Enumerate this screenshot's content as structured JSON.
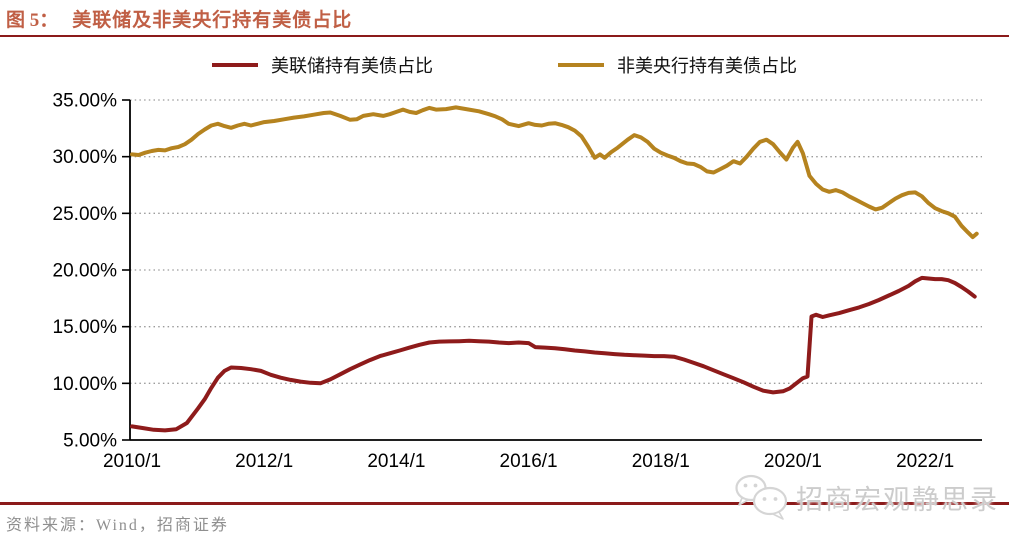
{
  "figure": {
    "number": "图 5：",
    "title": "美联储及非美央行持有美债占比"
  },
  "footer": {
    "source": "资料来源：Wind，招商证券"
  },
  "watermark": {
    "icon": "wechat-icon",
    "text": "招商宏观静思录"
  },
  "colors": {
    "title": "#c05f45",
    "rule": "#8b1a1a",
    "axis": "#000000",
    "grid": "#9b9b9b",
    "footer_text": "#8f8f8f",
    "watermark_text": "#cccccc",
    "fed_line": "#8e1b1b",
    "foreign_line": "#b5831f"
  },
  "chart_data": {
    "type": "line",
    "title": "美联储及非美央行持有美债占比",
    "xlabel": "",
    "ylabel": "",
    "grid": "horizontal-dotted",
    "legend_position": "top",
    "xlim": [
      2010,
      2022.86
    ],
    "ylim": [
      5,
      35
    ],
    "x_ticks": [
      {
        "value": 2010,
        "label": "2010/1"
      },
      {
        "value": 2012,
        "label": "2012/1"
      },
      {
        "value": 2014,
        "label": "2014/1"
      },
      {
        "value": 2016,
        "label": "2016/1"
      },
      {
        "value": 2018,
        "label": "2018/1"
      },
      {
        "value": 2020,
        "label": "2020/1"
      },
      {
        "value": 2022,
        "label": "2022/1"
      }
    ],
    "y_ticks": [
      {
        "value": 5,
        "label": "5.00%"
      },
      {
        "value": 10,
        "label": "10.00%"
      },
      {
        "value": 15,
        "label": "15.00%"
      },
      {
        "value": 20,
        "label": "20.00%"
      },
      {
        "value": 25,
        "label": "25.00%"
      },
      {
        "value": 30,
        "label": "30.00%"
      },
      {
        "value": 35,
        "label": "35.00%"
      }
    ],
    "series": [
      {
        "name": "美联储持有美债占比",
        "color": "#8e1b1b",
        "x": [
          2010.0,
          2010.17,
          2010.33,
          2010.5,
          2010.67,
          2010.83,
          2011.0,
          2011.1,
          2011.2,
          2011.3,
          2011.4,
          2011.5,
          2011.65,
          2011.8,
          2011.95,
          2012.1,
          2012.25,
          2012.4,
          2012.55,
          2012.7,
          2012.85,
          2013.0,
          2013.15,
          2013.3,
          2013.45,
          2013.6,
          2013.75,
          2013.9,
          2014.05,
          2014.2,
          2014.35,
          2014.5,
          2014.65,
          2014.8,
          2014.95,
          2015.1,
          2015.25,
          2015.4,
          2015.55,
          2015.7,
          2015.85,
          2016.0,
          2016.1,
          2016.25,
          2016.4,
          2016.55,
          2016.7,
          2016.85,
          2017.0,
          2017.15,
          2017.3,
          2017.45,
          2017.6,
          2017.75,
          2017.9,
          2018.05,
          2018.2,
          2018.35,
          2018.5,
          2018.65,
          2018.8,
          2018.95,
          2019.1,
          2019.25,
          2019.4,
          2019.55,
          2019.7,
          2019.85,
          2019.95,
          2020.05,
          2020.15,
          2020.22,
          2020.28,
          2020.35,
          2020.45,
          2020.55,
          2020.7,
          2020.85,
          2021.0,
          2021.15,
          2021.3,
          2021.45,
          2021.6,
          2021.75,
          2021.85,
          2021.95,
          2022.05,
          2022.15,
          2022.25,
          2022.35,
          2022.45,
          2022.55,
          2022.65,
          2022.75
        ],
        "y": [
          6.2,
          6.05,
          5.9,
          5.85,
          5.95,
          6.5,
          7.8,
          8.6,
          9.6,
          10.5,
          11.1,
          11.4,
          11.35,
          11.25,
          11.1,
          10.75,
          10.5,
          10.3,
          10.15,
          10.05,
          10.0,
          10.35,
          10.8,
          11.25,
          11.65,
          12.05,
          12.4,
          12.65,
          12.9,
          13.15,
          13.4,
          13.6,
          13.68,
          13.7,
          13.72,
          13.75,
          13.72,
          13.68,
          13.6,
          13.55,
          13.6,
          13.55,
          13.2,
          13.15,
          13.1,
          13.0,
          12.9,
          12.82,
          12.72,
          12.65,
          12.58,
          12.52,
          12.48,
          12.45,
          12.4,
          12.4,
          12.35,
          12.1,
          11.8,
          11.5,
          11.15,
          10.8,
          10.45,
          10.1,
          9.7,
          9.35,
          9.2,
          9.3,
          9.55,
          10.0,
          10.45,
          10.6,
          15.9,
          16.05,
          15.85,
          16.0,
          16.2,
          16.45,
          16.7,
          17.0,
          17.35,
          17.75,
          18.15,
          18.6,
          19.0,
          19.3,
          19.25,
          19.2,
          19.2,
          19.1,
          18.85,
          18.5,
          18.1,
          17.65
        ]
      },
      {
        "name": "非美央行持有美债占比",
        "color": "#b5831f",
        "x": [
          2010.0,
          2010.1,
          2010.2,
          2010.3,
          2010.4,
          2010.5,
          2010.6,
          2010.7,
          2010.8,
          2010.9,
          2011.0,
          2011.1,
          2011.2,
          2011.3,
          2011.4,
          2011.5,
          2011.6,
          2011.7,
          2011.8,
          2011.9,
          2012.0,
          2012.15,
          2012.3,
          2012.45,
          2012.6,
          2012.75,
          2012.9,
          2013.0,
          2013.15,
          2013.3,
          2013.4,
          2013.5,
          2013.65,
          2013.8,
          2013.9,
          2014.0,
          2014.1,
          2014.2,
          2014.3,
          2014.4,
          2014.5,
          2014.6,
          2014.75,
          2014.9,
          2015.0,
          2015.1,
          2015.25,
          2015.4,
          2015.5,
          2015.6,
          2015.7,
          2015.85,
          2016.0,
          2016.1,
          2016.2,
          2016.3,
          2016.4,
          2016.5,
          2016.6,
          2016.7,
          2016.8,
          2016.9,
          2017.0,
          2017.08,
          2017.15,
          2017.25,
          2017.35,
          2017.5,
          2017.6,
          2017.7,
          2017.8,
          2017.9,
          2018.0,
          2018.1,
          2018.2,
          2018.3,
          2018.4,
          2018.5,
          2018.6,
          2018.7,
          2018.8,
          2018.9,
          2019.0,
          2019.1,
          2019.2,
          2019.3,
          2019.4,
          2019.5,
          2019.6,
          2019.7,
          2019.8,
          2019.9,
          2020.0,
          2020.07,
          2020.15,
          2020.25,
          2020.35,
          2020.45,
          2020.55,
          2020.65,
          2020.75,
          2020.85,
          2020.95,
          2021.05,
          2021.15,
          2021.25,
          2021.35,
          2021.45,
          2021.55,
          2021.65,
          2021.75,
          2021.85,
          2021.95,
          2022.05,
          2022.15,
          2022.25,
          2022.35,
          2022.45,
          2022.55,
          2022.65,
          2022.72,
          2022.78
        ],
        "y": [
          30.2,
          30.15,
          30.35,
          30.5,
          30.6,
          30.55,
          30.75,
          30.85,
          31.1,
          31.5,
          32.0,
          32.4,
          32.75,
          32.9,
          32.7,
          32.55,
          32.75,
          32.9,
          32.75,
          32.9,
          33.05,
          33.15,
          33.3,
          33.45,
          33.55,
          33.7,
          33.85,
          33.9,
          33.6,
          33.25,
          33.3,
          33.6,
          33.75,
          33.6,
          33.75,
          33.95,
          34.15,
          33.95,
          33.85,
          34.1,
          34.3,
          34.15,
          34.2,
          34.35,
          34.25,
          34.15,
          34.0,
          33.75,
          33.55,
          33.3,
          32.9,
          32.7,
          32.95,
          32.8,
          32.75,
          32.9,
          32.95,
          32.8,
          32.6,
          32.3,
          31.8,
          30.9,
          29.9,
          30.2,
          29.9,
          30.4,
          30.8,
          31.5,
          31.9,
          31.7,
          31.3,
          30.7,
          30.35,
          30.1,
          29.9,
          29.6,
          29.4,
          29.35,
          29.1,
          28.7,
          28.6,
          28.9,
          29.2,
          29.6,
          29.4,
          30.0,
          30.7,
          31.3,
          31.5,
          31.1,
          30.4,
          29.75,
          30.8,
          31.3,
          30.3,
          28.3,
          27.6,
          27.1,
          26.9,
          27.05,
          26.85,
          26.5,
          26.2,
          25.9,
          25.6,
          25.35,
          25.5,
          25.9,
          26.3,
          26.6,
          26.8,
          26.85,
          26.5,
          25.9,
          25.45,
          25.2,
          25.0,
          24.7,
          23.9,
          23.3,
          22.9,
          23.2
        ]
      }
    ]
  }
}
